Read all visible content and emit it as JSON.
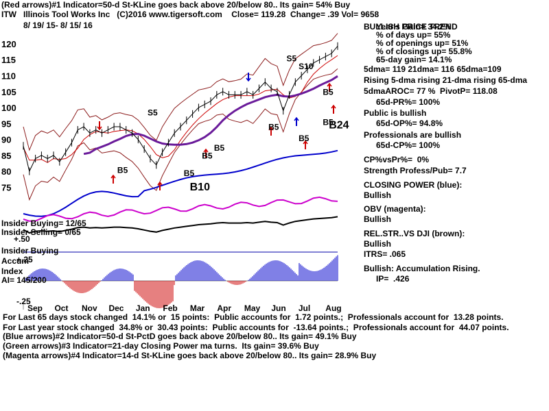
{
  "header": {
    "line1": "(Red arrows)#1 Indicator=50-d St-KLine goes back above 20/below 80.. Its gain= 54% Buy",
    "ticker": "ITW",
    "company": "Illinois Tool Works Inc",
    "copyright": "(C)2016 www.tigersoft.com",
    "close_label": "Close=",
    "close": "119.28",
    "change_label": "Change=",
    "change": ".39",
    "vol_label": "Vol=",
    "vol": "9658",
    "date_range": "8/ 19/ 15- 8/ 15/ 16"
  },
  "right_panel": {
    "title": "BULLISH PRICE TREND",
    "lines": [
      "Year's Gain= 34.2%",
      "% of days up= 55%",
      "% of openings up= 51%",
      "% of closings up= 55.8%",
      "65-day gain= 14.1%",
      "5dma= 119 21dma= 116 65dma=109",
      "Rising 5-dma rising 21-dma rising 65-dma",
      "5dmaAROC= 77 %  PivotP= 118.08",
      "65d-PR%= 100%",
      "Public is bullish",
      "65d-OP%= 94.8%",
      "Professionals are bullish",
      "65d-CP%= 100%",
      "CP%vsPr%=  0%",
      "Strength Profess/Pub= 7.7",
      "CLOSING POWER (blue):",
      "Bullish",
      "OBV (magenta):",
      "Bullish",
      "REL.STR..VS DJI (brown):",
      "Bullish",
      "ITRS= .065",
      "Bullish: Accumulation Rising.",
      "IP=  .426"
    ]
  },
  "left_labels": {
    "insider_buying_1": "Insider Buying= 12/65",
    "insider_selling": "Insider Selling= 0/65",
    "plus50": "+.50",
    "insider_buying_2": "Insider Buying",
    "accum": "Accum",
    "plus25": "+.25",
    "index": "Index",
    "ai": "AI= 145/200",
    "minus25": "-.25"
  },
  "footer": [
    "For Last 65 days stock changed  14.1% or  15 points:  Public accounts for  1.72 points.;  Professionals account for  13.28 points.",
    "For Last year stock changed  34.8% or  30.43 points:  Public accounts for  -13.64 points.;  Professionals account for  44.07 points.",
    "(Blue arrows)#2 Indicator=50-d St-PctD goes back above 20/below 80.. Its gain= 49.1% Buy",
    "(Green arrows)#3 Indicator=21-day Closing Power ma turns.  Its gain= 39.6% Buy",
    "(Magenta arrows)#4 Indicator=14-d St-KLine goes back above 20/below 80.. Its gain= 28.9% Buy"
  ],
  "chart_data": {
    "type": "line",
    "title": "ITW Illinois Tool Works Inc",
    "y_ticks": [
      75,
      80,
      85,
      90,
      95,
      100,
      105,
      110,
      115,
      120
    ],
    "ylim": [
      71,
      123
    ],
    "x_months": [
      "Sep",
      "Oct",
      "Nov",
      "Dec",
      "Jan",
      "Feb",
      "Mar",
      "Apr",
      "May",
      "Jun",
      "Jul",
      "Aug"
    ],
    "price_series": {
      "name": "ITW close",
      "points": [
        [
          0,
          88
        ],
        [
          1,
          80
        ],
        [
          2,
          84
        ],
        [
          3,
          85
        ],
        [
          4,
          84
        ],
        [
          5,
          85
        ],
        [
          6,
          83
        ],
        [
          7,
          86
        ],
        [
          8,
          89
        ],
        [
          9,
          93
        ],
        [
          10,
          94
        ],
        [
          11,
          92
        ],
        [
          12,
          93
        ],
        [
          13,
          92
        ],
        [
          14,
          93
        ],
        [
          15,
          94
        ],
        [
          16,
          94
        ],
        [
          17,
          93
        ],
        [
          18,
          92
        ],
        [
          19,
          90
        ],
        [
          20,
          87
        ],
        [
          21,
          84
        ],
        [
          22,
          82
        ],
        [
          23,
          86
        ],
        [
          24,
          89
        ],
        [
          25,
          92
        ],
        [
          26,
          94
        ],
        [
          27,
          96
        ],
        [
          28,
          98
        ],
        [
          29,
          100
        ],
        [
          30,
          101
        ],
        [
          31,
          102
        ],
        [
          32,
          104
        ],
        [
          33,
          105
        ],
        [
          34,
          104
        ],
        [
          35,
          104
        ],
        [
          36,
          104
        ],
        [
          37,
          105
        ],
        [
          38,
          104
        ],
        [
          39,
          106
        ],
        [
          40,
          108
        ],
        [
          41,
          106
        ],
        [
          42,
          105
        ],
        [
          43,
          99
        ],
        [
          44,
          104
        ],
        [
          45,
          108
        ],
        [
          46,
          110
        ],
        [
          47,
          112
        ],
        [
          48,
          114
        ],
        [
          49,
          115
        ],
        [
          50,
          116
        ],
        [
          51,
          117
        ],
        [
          52,
          119.28
        ]
      ]
    },
    "signals": [
      {
        "label": "S5",
        "x": 21,
        "y": 97.5
      },
      {
        "label": "S5",
        "x": 44,
        "y": 114.5
      },
      {
        "label": "S10",
        "x": 46,
        "y": 112
      },
      {
        "label": "B5",
        "x": 16,
        "y": 79.5
      },
      {
        "label": "B5",
        "x": 27,
        "y": 78.5
      },
      {
        "label": "B5",
        "x": 30,
        "y": 84
      },
      {
        "label": "B5",
        "x": 32,
        "y": 86.5
      },
      {
        "label": "B5",
        "x": 41,
        "y": 93
      },
      {
        "label": "B5",
        "x": 46,
        "y": 89.5
      },
      {
        "label": "B5",
        "x": 50,
        "y": 104
      },
      {
        "label": "B5",
        "x": 50,
        "y": 94.5
      },
      {
        "label": "B24",
        "x": 51,
        "y": 93.5
      },
      {
        "label": "B10",
        "x": 28,
        "y": 74
      }
    ]
  }
}
